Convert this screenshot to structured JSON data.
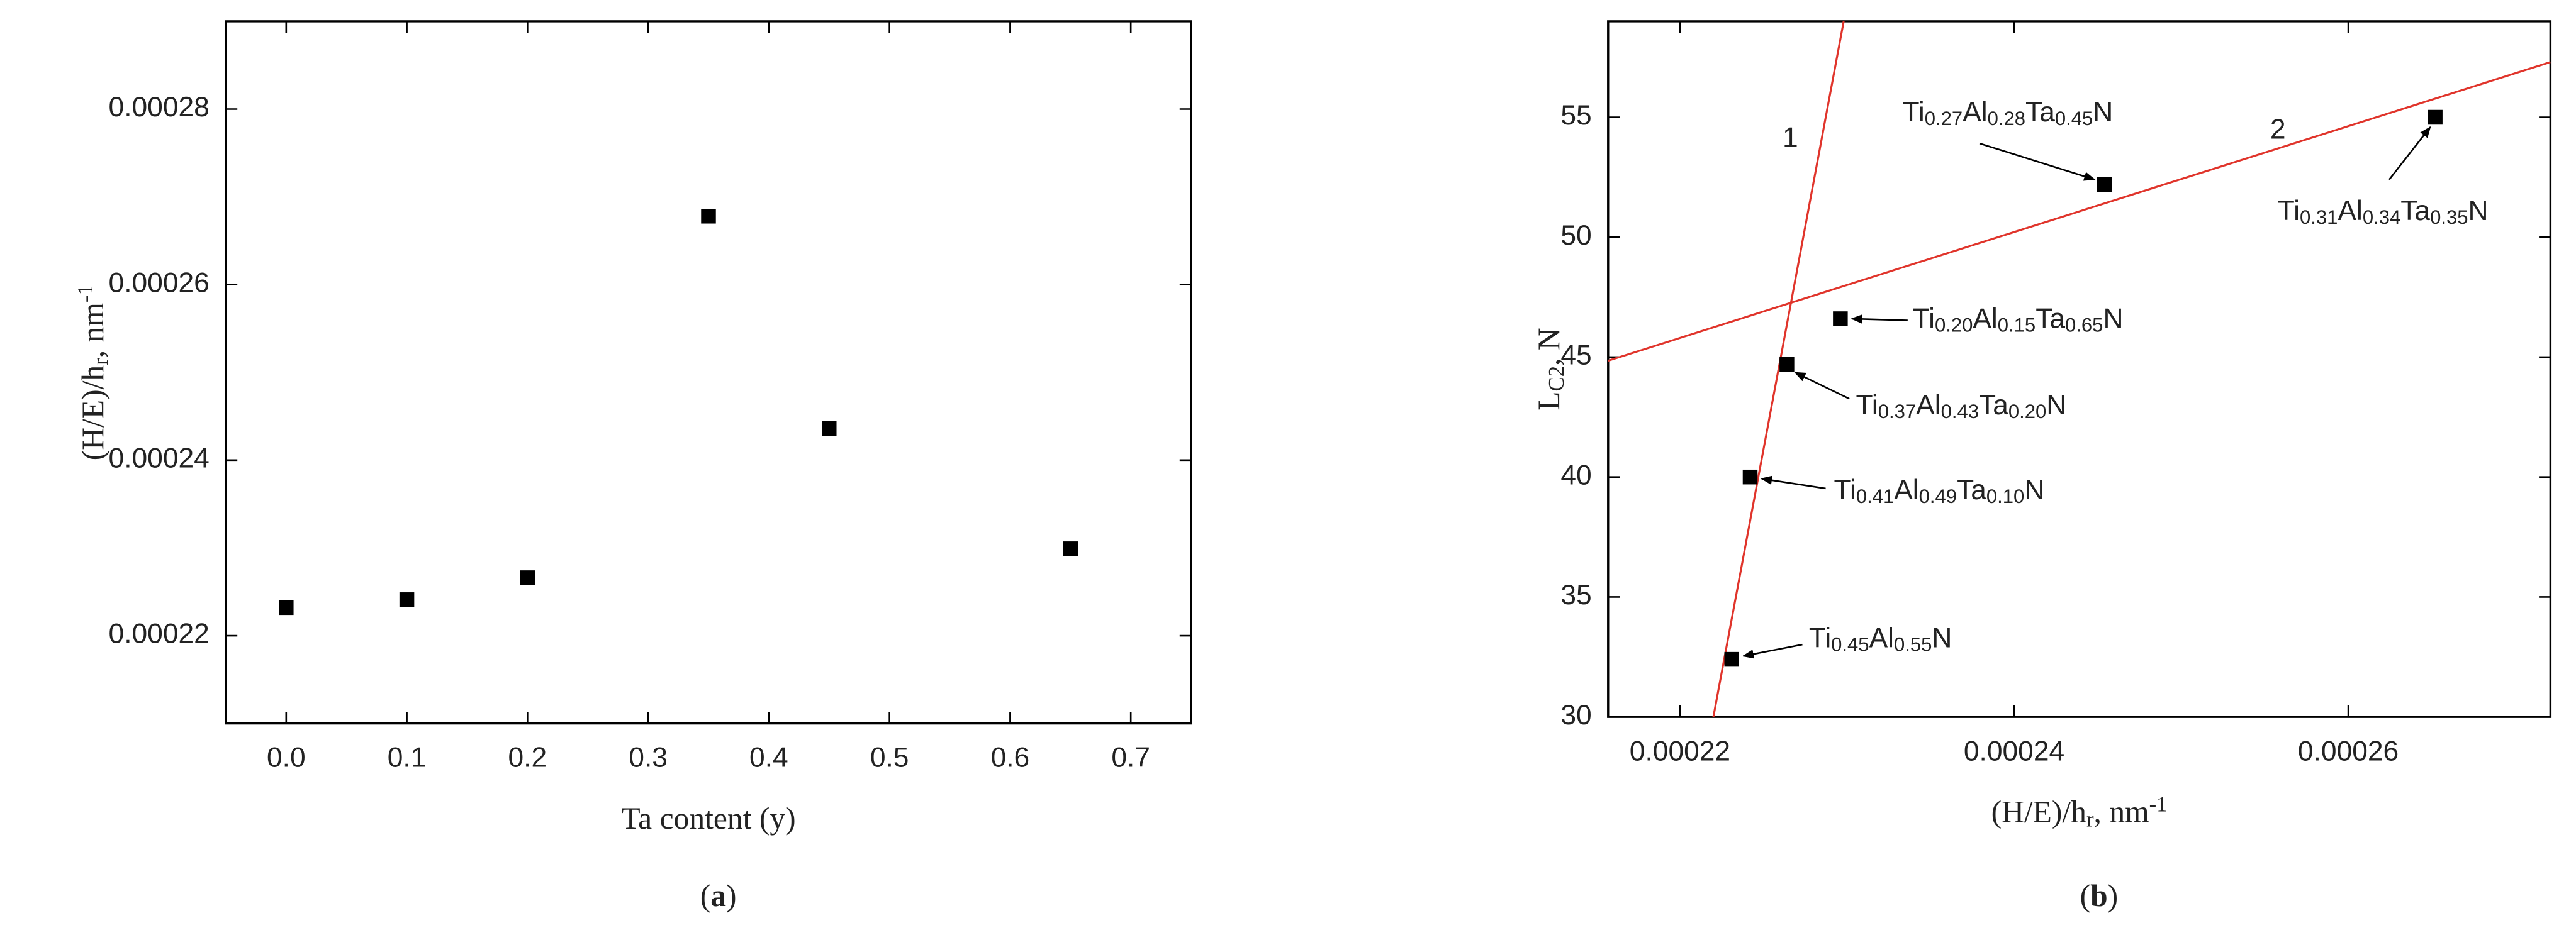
{
  "chart_data": [
    {
      "type": "scatter",
      "panel_label": "(a)",
      "xlabel": "Ta content (y)",
      "ylabel": "(H/E)/hr, nm-1",
      "xlim": [
        -0.05,
        0.75
      ],
      "xticks": [
        {
          "value": 0,
          "label": "0.0"
        },
        0.1,
        0.2,
        0.3,
        0.4,
        0.5,
        0.6,
        0.7
      ],
      "ylim": [
        0.00021,
        0.00029
      ],
      "yticks": [
        0.00022,
        0.00024,
        0.00026,
        0.00028
      ],
      "series": [
        {
          "color": "#000000",
          "x": [
            0,
            0.1,
            0.2,
            0.35,
            0.45,
            0.65
          ],
          "values": [
            0.0002232,
            0.0002241,
            0.0002266,
            0.0002678,
            0.0002436,
            0.0002299
          ]
        }
      ]
    },
    {
      "type": "scatter",
      "panel_label": "(b)",
      "xlabel": "(H/E)/hr, nm-1",
      "ylabel": "LC2, N",
      "xlim": [
        0.0002157,
        0.0002721
      ],
      "xticks": [
        0.00022,
        0.00024,
        0.00026
      ],
      "ylim": [
        30,
        59
      ],
      "yticks": [
        30,
        35,
        40,
        45,
        50,
        55
      ],
      "series": [
        {
          "color": "#000000",
          "x": [
            0.0002231,
            0.0002242,
            0.0002264,
            0.0002296,
            0.0002454,
            0.0002652
          ],
          "values": [
            32.4,
            40.0,
            44.7,
            46.6,
            52.2,
            55.0
          ],
          "point_labels": [
            "Ti0.45Al0.55N",
            "Ti0.41Al0.49Ta0.10N",
            "Ti0.37Al0.43Ta0.20N",
            "Ti0.20Al0.15Ta0.65N",
            "Ti0.27Al0.28Ta0.45N",
            "Ti0.31Al0.34Ta0.35N"
          ]
        }
      ],
      "fit_lines": [
        {
          "label": "1",
          "color": "#e0342b",
          "x": [
            0.000222,
            0.0002298
          ],
          "values": [
            30,
            59
          ]
        },
        {
          "label": "2",
          "color": "#e0342b",
          "x": [
            0.0002157,
            0.0002721
          ],
          "values": [
            44.85,
            57.3
          ]
        }
      ]
    }
  ]
}
